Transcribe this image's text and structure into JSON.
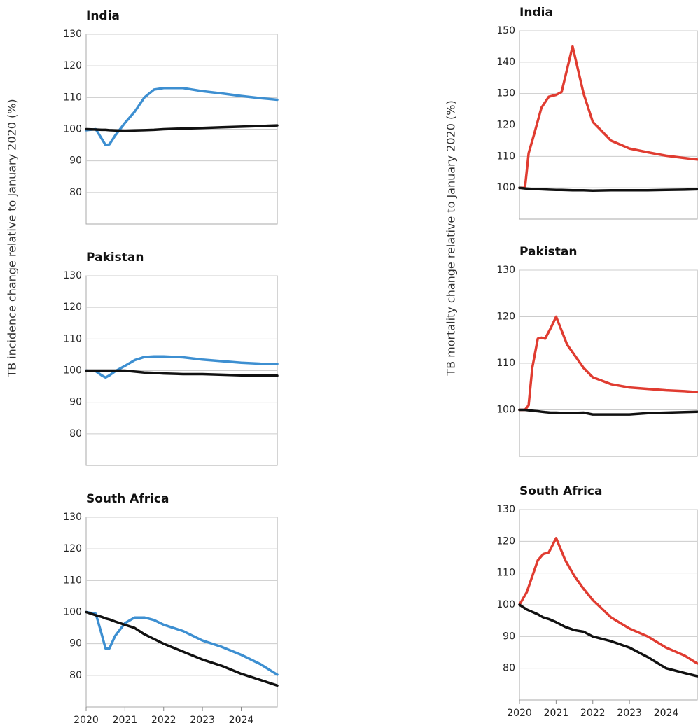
{
  "chart_data": [
    {
      "type": "line",
      "title": "India",
      "ylabel": "TB incidence change relative to January 2020 (%)",
      "x": [
        2020,
        2020.25,
        2020.4,
        2020.5,
        2020.6,
        2020.75,
        2021,
        2021.25,
        2021.5,
        2021.75,
        2022,
        2022.5,
        2023,
        2023.5,
        2024,
        2024.5,
        2024.93
      ],
      "series": [
        {
          "color": "#3d8fd1",
          "values": [
            99.7,
            100,
            97,
            95,
            95.2,
            98,
            102,
            105.5,
            110,
            112.5,
            113,
            113,
            112,
            111.3,
            110.5,
            109.8,
            109.3
          ]
        },
        {
          "color": "#111111",
          "values": [
            100,
            99.9,
            99.8,
            99.8,
            99.7,
            99.6,
            99.5,
            99.6,
            99.7,
            99.8,
            100,
            100.2,
            100.4,
            100.6,
            100.8,
            101,
            101.2
          ]
        }
      ],
      "xlim": [
        2020,
        2024.93
      ],
      "ylim": [
        70,
        130
      ],
      "yticks": [
        80,
        90,
        100,
        110,
        120,
        130
      ],
      "grid": true
    },
    {
      "type": "line",
      "title": "Pakistan",
      "x": [
        2020,
        2020.25,
        2020.4,
        2020.5,
        2020.6,
        2020.75,
        2021,
        2021.25,
        2021.5,
        2021.75,
        2022,
        2022.5,
        2023,
        2023.5,
        2024,
        2024.5,
        2024.93
      ],
      "series": [
        {
          "color": "#3d8fd1",
          "values": [
            100,
            99.8,
            98.5,
            97.8,
            98.5,
            99.8,
            101.5,
            103.3,
            104.3,
            104.5,
            104.5,
            104.2,
            103.5,
            103,
            102.5,
            102.2,
            102.1
          ]
        },
        {
          "color": "#111111",
          "values": [
            100,
            100,
            100,
            100,
            100,
            100,
            100,
            99.7,
            99.4,
            99.3,
            99.1,
            98.9,
            98.9,
            98.7,
            98.5,
            98.4,
            98.4
          ]
        }
      ],
      "xlim": [
        2020,
        2024.93
      ],
      "ylim": [
        70,
        130
      ],
      "yticks": [
        80,
        90,
        100,
        110,
        120,
        130
      ],
      "grid": true
    },
    {
      "type": "line",
      "title": "South Africa",
      "x": [
        2020,
        2020.25,
        2020.4,
        2020.5,
        2020.6,
        2020.75,
        2021,
        2021.25,
        2021.5,
        2021.75,
        2022,
        2022.5,
        2023,
        2023.5,
        2024,
        2024.5,
        2024.93
      ],
      "series": [
        {
          "color": "#3d8fd1",
          "values": [
            100,
            99.5,
            93,
            88.5,
            88.5,
            92.5,
            96.5,
            98.3,
            98.3,
            97.5,
            96,
            94,
            91,
            89,
            86.5,
            83.5,
            80.2
          ]
        },
        {
          "color": "#111111",
          "values": [
            100,
            99,
            98.5,
            98,
            97.7,
            97,
            96,
            95,
            93,
            91.5,
            90,
            87.5,
            85,
            83,
            80.5,
            78.5,
            76.8
          ]
        }
      ],
      "xlim": [
        2020,
        2024.93
      ],
      "xticks": [
        2020,
        2021,
        2022,
        2023,
        2024
      ],
      "ylim": [
        70,
        130
      ],
      "yticks": [
        80,
        90,
        100,
        110,
        120,
        130
      ],
      "grid": true
    },
    {
      "type": "line",
      "title": "India",
      "ylabel": "TB mortality change relative to January 2020 (%)",
      "x": [
        2020,
        2020.15,
        2020.25,
        2020.4,
        2020.6,
        2020.8,
        2021,
        2021.15,
        2021.45,
        2021.75,
        2022,
        2022.5,
        2023,
        2023.5,
        2024,
        2024.5,
        2024.85
      ],
      "series": [
        {
          "color": "#e03c31",
          "values": [
            100,
            100,
            111,
            117,
            125.5,
            129,
            129.6,
            130.5,
            145,
            130,
            121,
            115,
            112.5,
            111.3,
            110.2,
            109.5,
            109
          ]
        },
        {
          "color": "#111111",
          "values": [
            100,
            99.8,
            99.7,
            99.6,
            99.5,
            99.4,
            99.3,
            99.3,
            99.2,
            99.2,
            99.1,
            99.2,
            99.2,
            99.2,
            99.3,
            99.4,
            99.5
          ]
        }
      ],
      "xlim": [
        2020,
        2024.85
      ],
      "ylim": [
        90,
        150
      ],
      "yticks": [
        100,
        110,
        120,
        130,
        140,
        150
      ],
      "grid": true
    },
    {
      "type": "line",
      "title": "Pakistan",
      "x": [
        2020,
        2020.15,
        2020.25,
        2020.35,
        2020.5,
        2020.6,
        2020.7,
        2020.85,
        2021,
        2021.3,
        2021.75,
        2022,
        2022.5,
        2023,
        2023.5,
        2024,
        2024.5,
        2024.85
      ],
      "series": [
        {
          "color": "#e03c31",
          "values": [
            100,
            100,
            101,
            109,
            115.3,
            115.5,
            115.3,
            117.5,
            120,
            114,
            109,
            107,
            105.5,
            104.8,
            104.5,
            104.2,
            104,
            103.8
          ]
        },
        {
          "color": "#111111",
          "values": [
            100,
            100,
            99.9,
            99.8,
            99.7,
            99.6,
            99.5,
            99.4,
            99.4,
            99.3,
            99.4,
            99,
            99,
            99,
            99.3,
            99.4,
            99.5,
            99.6
          ]
        }
      ],
      "xlim": [
        2020,
        2024.85
      ],
      "ylim": [
        90,
        130
      ],
      "yticks": [
        100,
        110,
        120,
        130
      ],
      "grid": true
    },
    {
      "type": "line",
      "title": "South Africa",
      "x": [
        2020,
        2020.2,
        2020.5,
        2020.65,
        2020.8,
        2021,
        2021.25,
        2021.5,
        2021.75,
        2022,
        2022.5,
        2023,
        2023.5,
        2024,
        2024.5,
        2024.85
      ],
      "series": [
        {
          "color": "#e03c31",
          "values": [
            100,
            104,
            114,
            116,
            116.5,
            121,
            114,
            109,
            105,
            101.5,
            96,
            92.5,
            90,
            86.5,
            84,
            81.5
          ]
        },
        {
          "color": "#111111",
          "values": [
            100,
            98.5,
            97,
            96,
            95.5,
            94.5,
            93,
            92,
            91.5,
            90,
            88.5,
            86.5,
            83.5,
            80,
            78.5,
            77.5
          ]
        }
      ],
      "xlim": [
        2020,
        2024.85
      ],
      "xticks": [
        2020,
        2021,
        2022,
        2023,
        2024
      ],
      "ylim": [
        70,
        130
      ],
      "yticks": [
        80,
        90,
        100,
        110,
        120,
        130
      ],
      "grid": true
    }
  ]
}
